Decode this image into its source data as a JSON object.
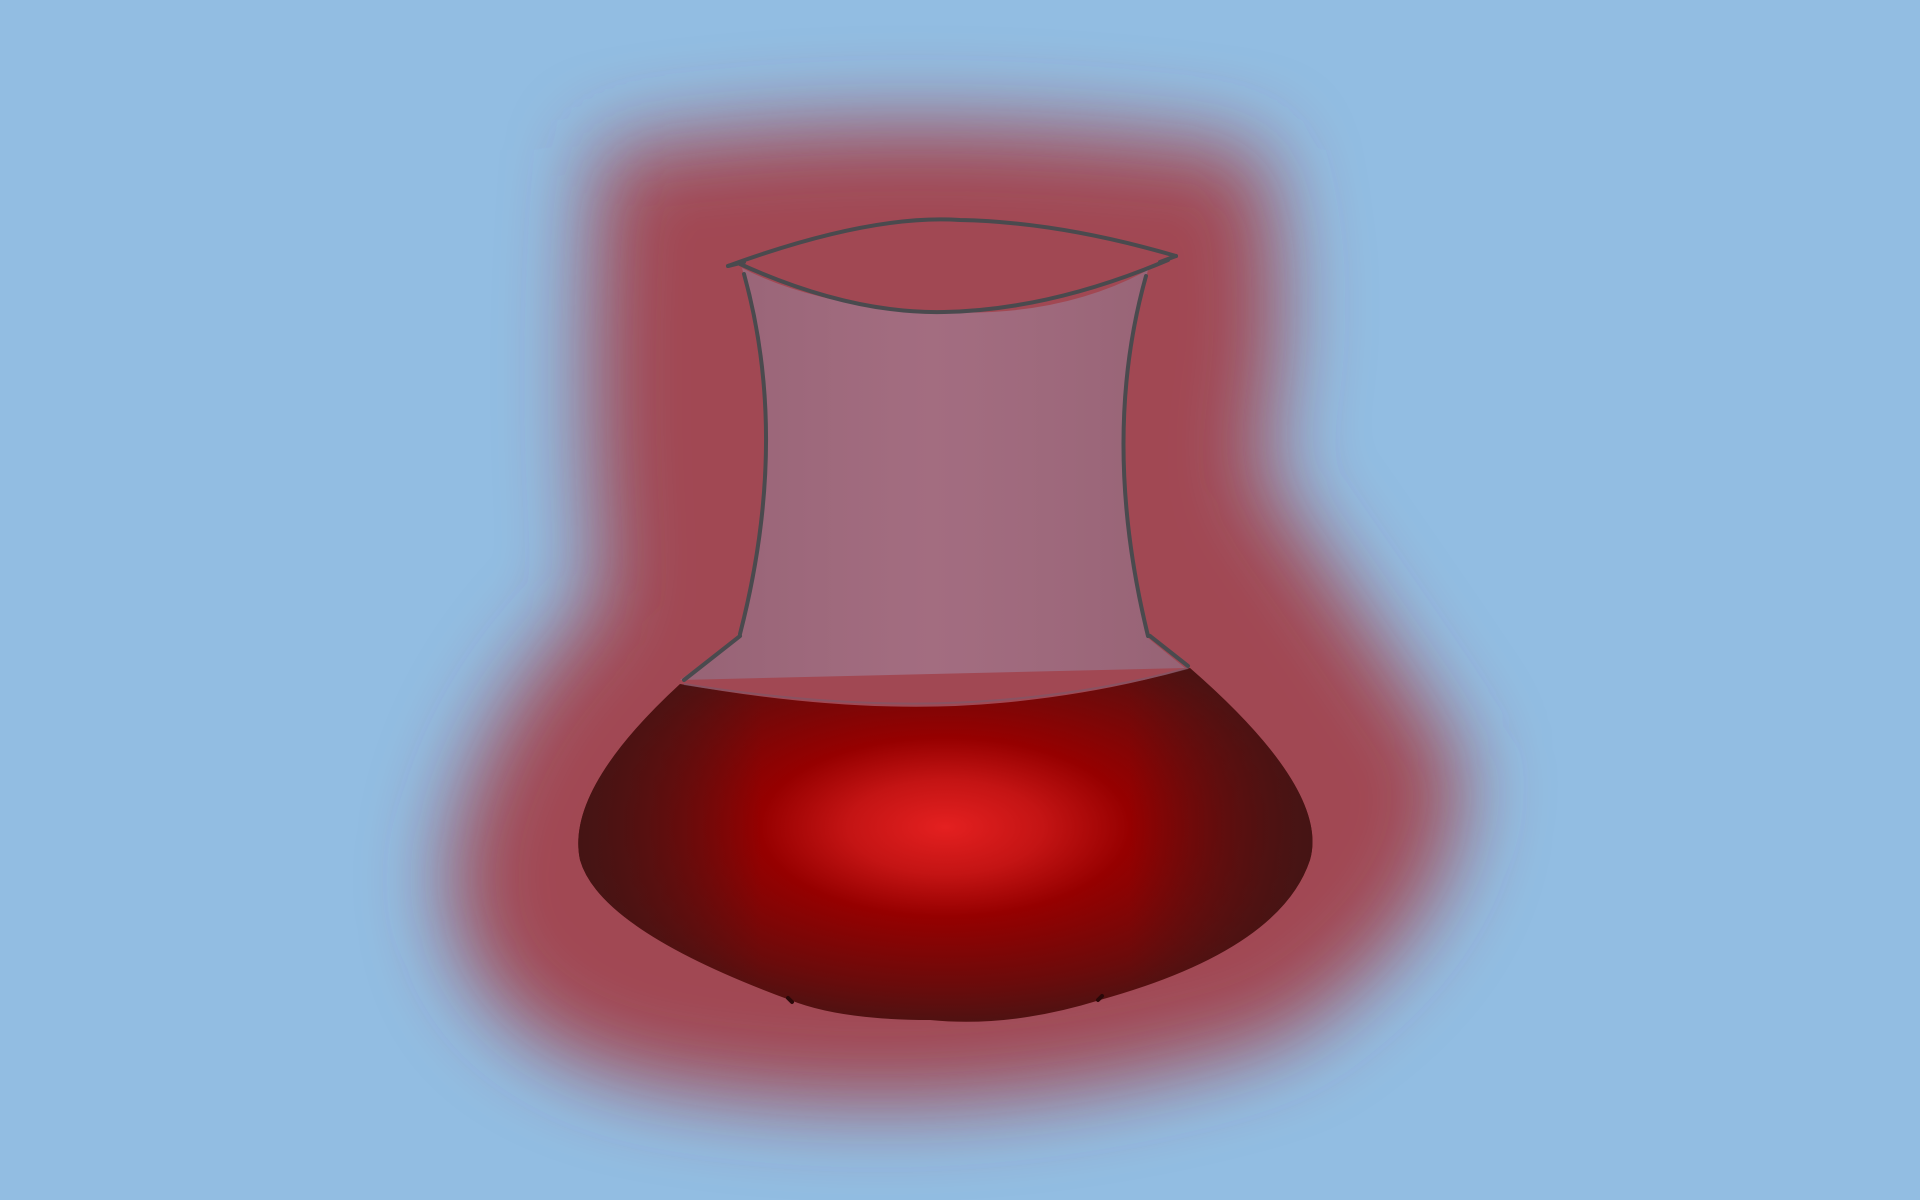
{
  "scene": {
    "subject": "flask-with-red-liquid",
    "icon": "flask-icon"
  },
  "colors": {
    "background": "#92bde2",
    "glow": "#a33a42",
    "liquid_center": "#e42020",
    "liquid_mid": "#960000",
    "liquid_edge": "#421515",
    "glass_fill": "#9a8aa8",
    "glass_outline": "#4a4a4e"
  }
}
